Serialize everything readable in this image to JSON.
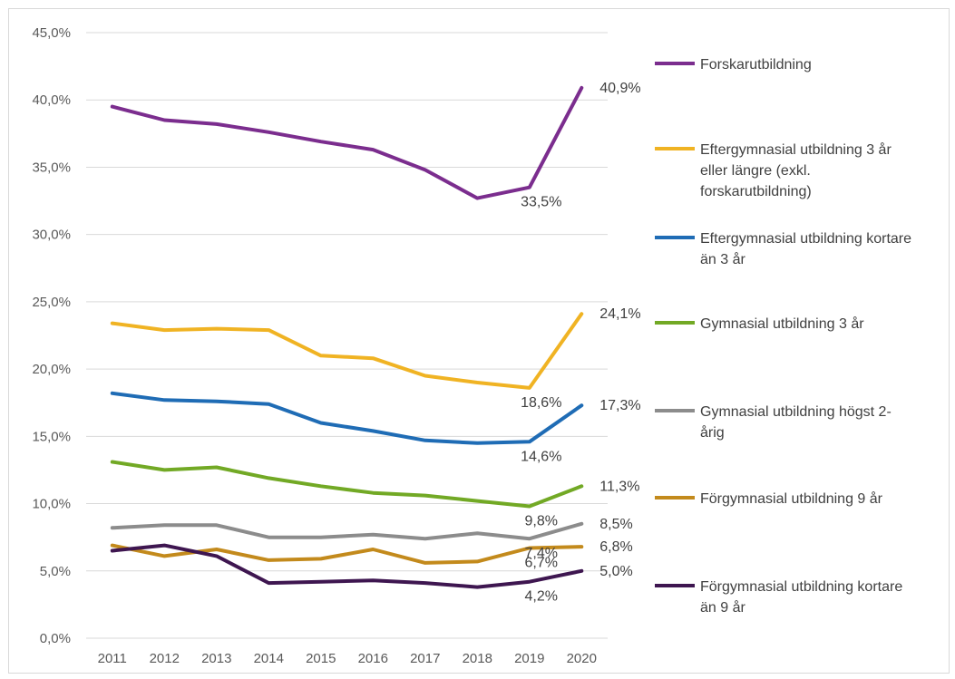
{
  "chart_data": {
    "type": "line",
    "title": "",
    "xlabel": "",
    "ylabel": "",
    "ylim": [
      0,
      45
    ],
    "y_ticks": [
      "0,0%",
      "5,0%",
      "10,0%",
      "15,0%",
      "20,0%",
      "25,0%",
      "30,0%",
      "35,0%",
      "40,0%",
      "45,0%"
    ],
    "grid": true,
    "legend_position": "right",
    "categories": [
      "2011",
      "2012",
      "2013",
      "2014",
      "2015",
      "2016",
      "2017",
      "2018",
      "2019",
      "2020"
    ],
    "series": [
      {
        "name": "Forskarutbildning",
        "color": "#7b2d8e",
        "values": [
          39.5,
          38.5,
          38.2,
          37.6,
          36.9,
          36.3,
          34.8,
          32.7,
          33.5,
          40.9
        ],
        "labels": [
          {
            "index": 8,
            "text": "33,5%"
          },
          {
            "index": 9,
            "text": "40,9%"
          }
        ]
      },
      {
        "name": "Eftergymnasial utbildning 3 år eller längre (exkl. forskarutbildning)",
        "color": "#f0b323",
        "legend_lines": [
          "Eftergymnasial utbildning 3 år",
          "eller längre (exkl.",
          "forskarutbildning)"
        ],
        "values": [
          23.4,
          22.9,
          23.0,
          22.9,
          21.0,
          20.8,
          19.5,
          19.0,
          18.6,
          24.1
        ],
        "labels": [
          {
            "index": 8,
            "text": "18,6%"
          },
          {
            "index": 9,
            "text": "24,1%"
          }
        ]
      },
      {
        "name": "Eftergymnasial utbildning kortare än 3 år",
        "color": "#1f6cb5",
        "legend_lines": [
          "Eftergymnasial utbildning kortare",
          "än 3 år"
        ],
        "values": [
          18.2,
          17.7,
          17.6,
          17.4,
          16.0,
          15.4,
          14.7,
          14.5,
          14.6,
          17.3
        ],
        "labels": [
          {
            "index": 8,
            "text": "14,6%"
          },
          {
            "index": 9,
            "text": "17,3%"
          }
        ]
      },
      {
        "name": "Gymnasial utbildning 3 år",
        "color": "#72a925",
        "legend_lines": [
          "Gymnasial utbildning 3 år"
        ],
        "values": [
          13.1,
          12.5,
          12.7,
          11.9,
          11.3,
          10.8,
          10.6,
          10.2,
          9.8,
          11.3
        ],
        "labels": [
          {
            "index": 8,
            "text": "9,8%"
          },
          {
            "index": 9,
            "text": "11,3%"
          }
        ]
      },
      {
        "name": "Gymnasial utbildning högst 2-årig",
        "color": "#8c8c8c",
        "legend_lines": [
          "Gymnasial utbildning högst 2-",
          "årig"
        ],
        "values": [
          8.2,
          8.4,
          8.4,
          7.5,
          7.5,
          7.7,
          7.4,
          7.8,
          7.4,
          8.5
        ],
        "labels": [
          {
            "index": 8,
            "text": "7,4%"
          },
          {
            "index": 9,
            "text": "8,5%"
          }
        ]
      },
      {
        "name": "Förgymnasial utbildning 9 år",
        "color": "#c38a1c",
        "legend_lines": [
          "Förgymnasial utbildning 9 år"
        ],
        "values": [
          6.9,
          6.1,
          6.6,
          5.8,
          5.9,
          6.6,
          5.6,
          5.7,
          6.7,
          6.8
        ],
        "labels": [
          {
            "index": 8,
            "text": "6,7%"
          },
          {
            "index": 9,
            "text": "6,8%"
          }
        ]
      },
      {
        "name": "Förgymnasial utbildning kortare än 9 år",
        "color": "#3e1650",
        "legend_lines": [
          "Förgymnasial utbildning kortare",
          "än 9 år"
        ],
        "values": [
          6.5,
          6.9,
          6.1,
          4.1,
          4.2,
          4.3,
          4.1,
          3.8,
          4.2,
          5.0
        ],
        "labels": [
          {
            "index": 8,
            "text": "4,2%"
          },
          {
            "index": 9,
            "text": "5,0%"
          }
        ]
      }
    ]
  }
}
